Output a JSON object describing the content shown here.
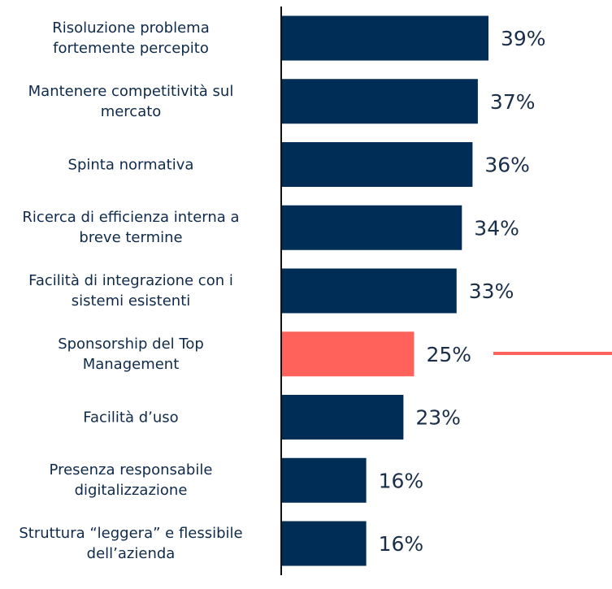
{
  "chart_data": {
    "type": "hbar",
    "categories": [
      "Risoluzione problema\nfortemente percepito",
      "Mantenere competitività sul\nmercato",
      "Spinta normativa",
      "Ricerca di efficienza interna a\nbreve termine",
      "Facilità di integrazione con i\nsistemi esistenti",
      "Sponsorship del Top\nManagement",
      "Facilità d’uso",
      "Presenza responsabile\ndigitalizzazione",
      "Struttura “leggera” e flessibile\ndell’azienda"
    ],
    "values": [
      39,
      37,
      36,
      34,
      33,
      25,
      23,
      16,
      16
    ],
    "value_labels": [
      "39%",
      "37%",
      "36%",
      "34%",
      "33%",
      "25%",
      "23%",
      "16%",
      "16%"
    ],
    "colors": [
      "#002d55",
      "#002d55",
      "#002d55",
      "#002d55",
      "#002d55",
      "#ff625a",
      "#002d55",
      "#002d55",
      "#002d55"
    ]
  }
}
